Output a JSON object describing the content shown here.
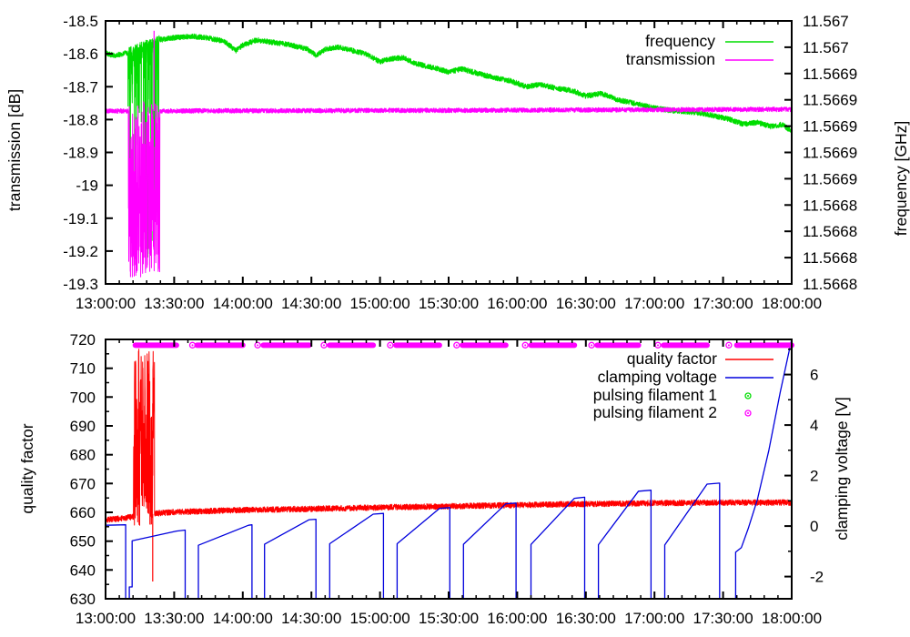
{
  "page": {
    "background": "#ffffff",
    "axis_color": "#000000"
  },
  "chart_data": [
    {
      "type": "line",
      "panel": "top",
      "x_axis": {
        "tick_labels": [
          "13:00:00",
          "13:30:00",
          "14:00:00",
          "14:30:00",
          "15:00:00",
          "15:30:00",
          "16:00:00",
          "16:30:00",
          "17:00:00",
          "17:30:00",
          "18:00:00"
        ],
        "range_minutes": [
          0,
          300
        ],
        "major_step_minutes": 30,
        "minor_step_minutes": 6
      },
      "y_left": {
        "label": "transmission [dB]",
        "range": [
          -19.3,
          -18.5
        ],
        "tick_labels_top_to_bottom": [
          "-18.5",
          "-18.6",
          "-18.7",
          "-18.8",
          "-18.9",
          "-19",
          "-19.1",
          "-19.2",
          "-19.3"
        ]
      },
      "y_right": {
        "label": "frequency [GHz]",
        "tick_labels_top_to_bottom": [
          "11.567",
          "11.567",
          "11.5669",
          "11.5669",
          "11.5669",
          "11.5669",
          "11.5669",
          "11.5668",
          "11.5668",
          "11.5668",
          "11.5668"
        ]
      },
      "legend": [
        {
          "label": "frequency",
          "color": "#00dd00",
          "marker": "line"
        },
        {
          "label": "transmission",
          "color": "#ff00ff",
          "marker": "line"
        }
      ],
      "series": [
        {
          "name": "frequency",
          "color": "#00dd00",
          "noise": 0.008,
          "anchors": [
            [
              0,
              -18.597
            ],
            [
              4,
              -18.606
            ],
            [
              9,
              -18.598
            ],
            [
              24,
              -18.557
            ],
            [
              30,
              -18.551
            ],
            [
              38,
              -18.547
            ],
            [
              45,
              -18.552
            ],
            [
              52,
              -18.562
            ],
            [
              57,
              -18.59
            ],
            [
              60,
              -18.574
            ],
            [
              66,
              -18.558
            ],
            [
              73,
              -18.565
            ],
            [
              80,
              -18.572
            ],
            [
              88,
              -18.585
            ],
            [
              92,
              -18.605
            ],
            [
              96,
              -18.586
            ],
            [
              102,
              -18.58
            ],
            [
              108,
              -18.59
            ],
            [
              114,
              -18.601
            ],
            [
              120,
              -18.625
            ],
            [
              124,
              -18.616
            ],
            [
              130,
              -18.612
            ],
            [
              136,
              -18.63
            ],
            [
              143,
              -18.642
            ],
            [
              150,
              -18.655
            ],
            [
              156,
              -18.646
            ],
            [
              163,
              -18.66
            ],
            [
              170,
              -18.673
            ],
            [
              177,
              -18.682
            ],
            [
              184,
              -18.7
            ],
            [
              190,
              -18.693
            ],
            [
              197,
              -18.705
            ],
            [
              204,
              -18.712
            ],
            [
              210,
              -18.728
            ],
            [
              217,
              -18.721
            ],
            [
              224,
              -18.74
            ],
            [
              231,
              -18.75
            ],
            [
              239,
              -18.764
            ],
            [
              247,
              -18.772
            ],
            [
              254,
              -18.776
            ],
            [
              261,
              -18.781
            ],
            [
              267,
              -18.79
            ],
            [
              273,
              -18.8
            ],
            [
              279,
              -18.814
            ],
            [
              285,
              -18.809
            ],
            [
              291,
              -18.821
            ],
            [
              296,
              -18.815
            ],
            [
              300,
              -18.836
            ]
          ],
          "burst": {
            "start": 9.8,
            "end": 23.6,
            "mode": "spiky-down",
            "mid_min": -18.88,
            "deep_min": -19.27
          }
        },
        {
          "name": "transmission",
          "color": "#ff00ff",
          "noise": 0.007,
          "anchors": [
            [
              0,
              -18.774
            ],
            [
              150,
              -18.772
            ],
            [
              300,
              -18.769
            ]
          ],
          "burst": {
            "start": 10.0,
            "end": 23.7,
            "mode": "fill",
            "min": -19.28,
            "max": -18.745
          },
          "spike_up": [
            21.2,
            -18.53
          ]
        }
      ]
    },
    {
      "type": "line",
      "panel": "bottom",
      "x_axis": {
        "tick_labels": [
          "13:00:00",
          "13:30:00",
          "14:00:00",
          "14:30:00",
          "15:00:00",
          "15:30:00",
          "16:00:00",
          "16:30:00",
          "17:00:00",
          "17:30:00",
          "18:00:00"
        ],
        "range_minutes": [
          0,
          300
        ],
        "major_step_minutes": 30,
        "minor_step_minutes": 6
      },
      "y_left": {
        "label": "quality factor",
        "range": [
          630,
          720
        ],
        "tick_labels_top_to_bottom": [
          "720",
          "710",
          "700",
          "690",
          "680",
          "670",
          "660",
          "650",
          "640",
          "630"
        ],
        "minor_step": 5
      },
      "y_right": {
        "label": "clamping voltage [V]",
        "range": [
          -2.88,
          7.39
        ],
        "tick_values_top_to_bottom": [
          6,
          4,
          2,
          0,
          -2
        ],
        "minor_tick_values": [
          7,
          5,
          3,
          1,
          -1
        ]
      },
      "legend": [
        {
          "label": "quality factor",
          "color": "#ff0000",
          "marker": "line"
        },
        {
          "label": "clamping voltage",
          "color": "#0000dd",
          "marker": "line"
        },
        {
          "label": "pulsing filament 1",
          "color": "#00dd00",
          "marker": "circle"
        },
        {
          "label": "pulsing filament 2",
          "color": "#ff00ff",
          "marker": "circle"
        }
      ],
      "series": [
        {
          "name": "quality factor",
          "color": "#ff0000",
          "noise": 1.0,
          "anchors": [
            [
              0,
              657.4
            ],
            [
              6,
              657.8
            ],
            [
              11,
              658.3
            ],
            [
              22,
              659.6
            ],
            [
              30,
              660.1
            ],
            [
              60,
              660.8
            ],
            [
              90,
              661.2
            ],
            [
              120,
              661.7
            ],
            [
              150,
              662.1
            ],
            [
              180,
              662.5
            ],
            [
              210,
              662.9
            ],
            [
              240,
              663.2
            ],
            [
              270,
              663.4
            ],
            [
              300,
              663.4
            ]
          ],
          "burst": {
            "start": 12.2,
            "end": 21.4,
            "mode": "fill",
            "min": 655.5,
            "max": 716.8
          },
          "spike_down": [
            20.6,
            636
          ]
        },
        {
          "name": "clamping voltage",
          "color": "#0000dd",
          "axis": "right",
          "points": [
            [
              0,
              0.03
            ],
            [
              8.8,
              0.05
            ],
            [
              8.8,
              -2.88
            ],
            [
              10.4,
              -2.88
            ],
            [
              10.4,
              -2.41
            ],
            [
              11.6,
              -2.41
            ],
            [
              11.6,
              -0.58
            ],
            [
              31,
              -0.2
            ],
            [
              34.8,
              -0.16
            ],
            [
              34.8,
              -2.88
            ],
            [
              40.6,
              -2.88
            ],
            [
              40.6,
              -0.76
            ],
            [
              62.5,
              0.03
            ],
            [
              64,
              0.05
            ],
            [
              64,
              -2.88
            ],
            [
              69.5,
              -2.88
            ],
            [
              69.5,
              -0.72
            ],
            [
              89,
              0.25
            ],
            [
              92,
              0.27
            ],
            [
              92,
              -2.88
            ],
            [
              98,
              -2.88
            ],
            [
              98,
              -0.7
            ],
            [
              117,
              0.47
            ],
            [
              121.5,
              0.5
            ],
            [
              121.5,
              -2.88
            ],
            [
              127.5,
              -2.88
            ],
            [
              127.5,
              -0.7
            ],
            [
              146,
              0.7
            ],
            [
              150.5,
              0.73
            ],
            [
              150.5,
              -2.88
            ],
            [
              156.5,
              -2.88
            ],
            [
              156.5,
              -0.72
            ],
            [
              175,
              0.88
            ],
            [
              179.5,
              0.91
            ],
            [
              179.5,
              -2.88
            ],
            [
              186,
              -2.88
            ],
            [
              186,
              -0.73
            ],
            [
              205,
              1.1
            ],
            [
              209.5,
              1.14
            ],
            [
              209.5,
              -2.88
            ],
            [
              215.5,
              -2.88
            ],
            [
              215.5,
              -0.74
            ],
            [
              233,
              1.38
            ],
            [
              238.5,
              1.42
            ],
            [
              238.5,
              -2.88
            ],
            [
              244.5,
              -2.88
            ],
            [
              244.5,
              -0.75
            ],
            [
              263,
              1.66
            ],
            [
              268.5,
              1.7
            ],
            [
              268.5,
              -2.88
            ],
            [
              275.5,
              -2.88
            ],
            [
              275.5,
              -1.03
            ],
            [
              278,
              -0.85
            ],
            [
              281,
              -0.1
            ],
            [
              285,
              1.05
            ],
            [
              290,
              3.0
            ],
            [
              295,
              5.3
            ],
            [
              300,
              7.4
            ]
          ]
        },
        {
          "name": "pulsing filament 2",
          "color": "#ff00ff",
          "marker_y_quality_factor": 718,
          "segments_minutes": [
            [
              13,
              31
            ],
            [
              40,
              60
            ],
            [
              69,
              89
            ],
            [
              98,
              117
            ],
            [
              127,
              146
            ],
            [
              156,
              175
            ],
            [
              186,
              205
            ],
            [
              215,
              233
            ],
            [
              244,
              263
            ],
            [
              276,
              300
            ]
          ],
          "lead_circles_minutes": [
            38,
            66.5,
            95.5,
            124.5,
            153.5,
            183.5,
            212.5,
            241.5,
            272.5
          ]
        },
        {
          "name": "pulsing filament 1",
          "color": "#00dd00",
          "marker_y_quality_factor": 718,
          "segments_minutes": [],
          "lead_circles_minutes": []
        }
      ]
    }
  ]
}
